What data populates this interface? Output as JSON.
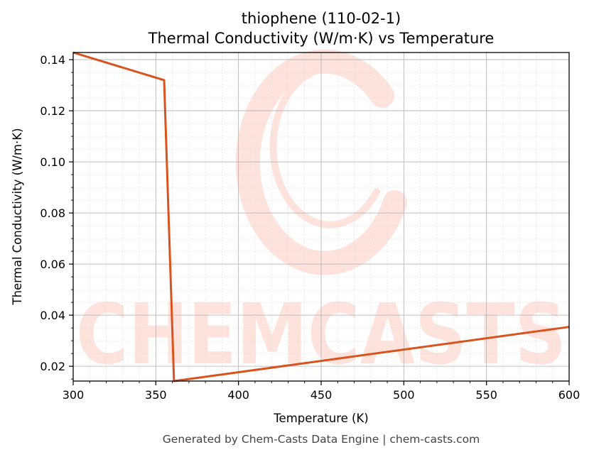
{
  "colors": {
    "line": "#d9531e",
    "watermark": "#fde3dc",
    "grid_major": "#b0b0b0",
    "grid_minor": "#dcdcdc",
    "footer_text": "#444444"
  },
  "watermark": {
    "text": "CHEMCASTS"
  },
  "footer": "Generated by Chem-Casts Data Engine | chem-casts.com",
  "chart_data": {
    "type": "line",
    "title": "thiophene (110-02-1)",
    "subtitle": "Thermal Conductivity (W/m·K) vs Temperature",
    "xlabel": "Temperature (K)",
    "ylabel": "Thermal Conductivity (W/m·K)",
    "xlim": [
      300,
      600
    ],
    "ylim": [
      0.0142,
      0.1428
    ],
    "xticks": [
      300,
      350,
      400,
      450,
      500,
      550,
      600
    ],
    "yticks": [
      0.02,
      0.04,
      0.06,
      0.08,
      0.1,
      0.12,
      0.14
    ],
    "ytick_labels": [
      "0.02",
      "0.04",
      "0.06",
      "0.08",
      "0.10",
      "0.12",
      "0.14"
    ],
    "grid": true,
    "minor_grid": true,
    "series": [
      {
        "x": [
          300,
          355,
          361,
          600
        ],
        "y": [
          0.1428,
          0.132,
          0.0142,
          0.0354
        ]
      }
    ]
  }
}
